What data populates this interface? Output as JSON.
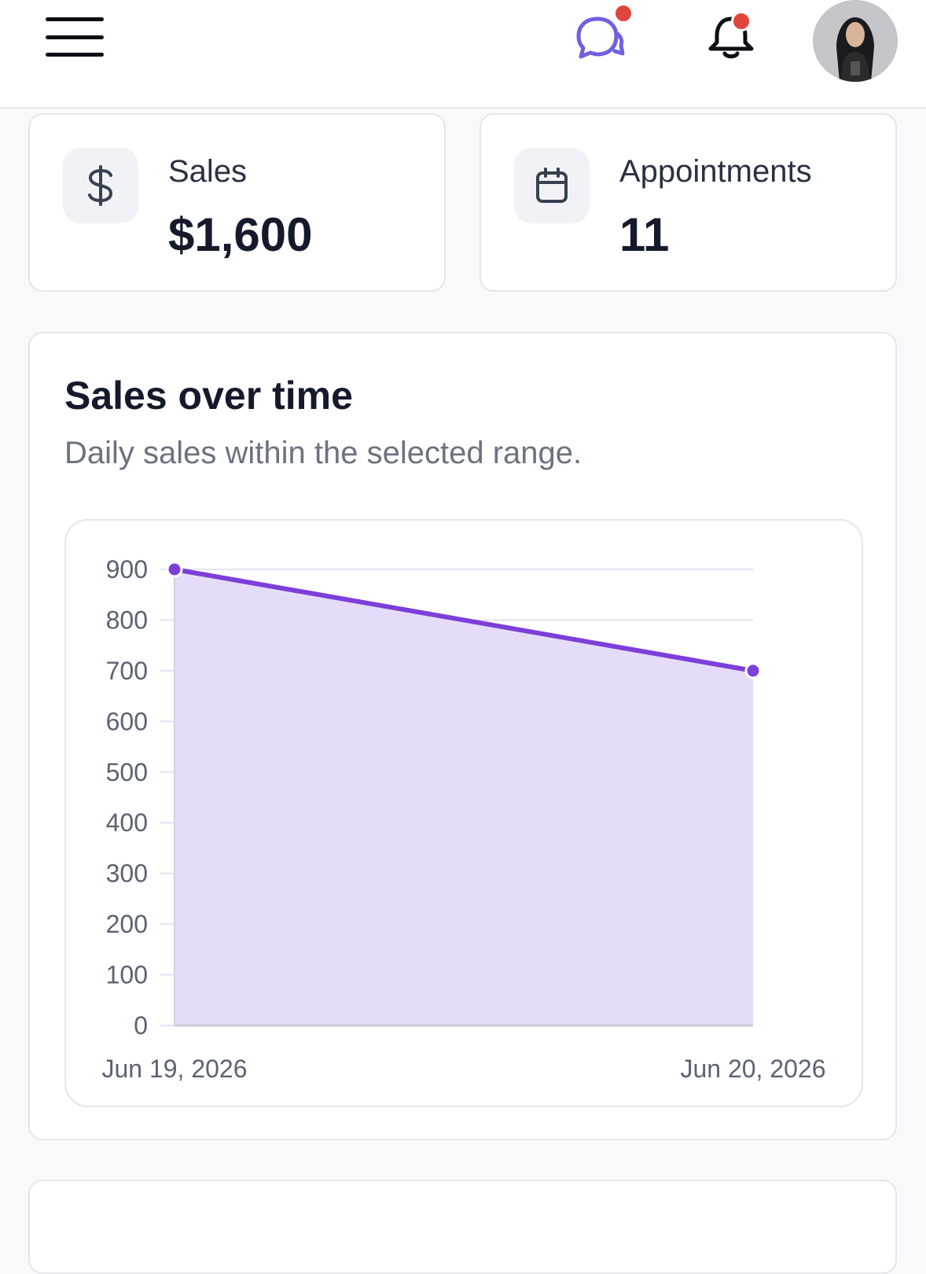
{
  "header": {
    "menu_icon": "hamburger-menu-icon",
    "chat_icon": "chat-bubbles-icon",
    "bell_icon": "bell-icon",
    "accent_color": "#7c4ddb",
    "badge_color": "#e0453d"
  },
  "stats": [
    {
      "icon": "dollar-icon",
      "label": "Sales",
      "value": "$1,600"
    },
    {
      "icon": "calendar-icon",
      "label": "Appointments",
      "value": "11"
    }
  ],
  "chart_card": {
    "title": "Sales over time",
    "subtitle": "Daily sales within the selected range."
  },
  "chart_data": {
    "type": "area",
    "x": [
      "Jun 19, 2026",
      "Jun 20, 2026"
    ],
    "series": [
      {
        "values": [
          900,
          700
        ]
      }
    ],
    "ylim": [
      0,
      900
    ],
    "yticks": [
      0,
      100,
      200,
      300,
      400,
      500,
      600,
      700,
      800,
      900
    ],
    "grid": true,
    "line_color": "#7c3fd9",
    "fill_color": "#e6dcf9"
  }
}
